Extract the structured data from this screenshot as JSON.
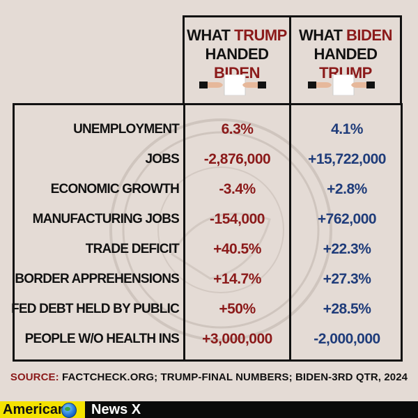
{
  "header": {
    "left": {
      "what": "WHAT",
      "name": "TRUMP",
      "handed": "HANDED",
      "to": "BIDEN"
    },
    "right": {
      "what": "WHAT",
      "name": "BIDEN",
      "handed": "HANDED",
      "to": "TRUMP"
    }
  },
  "rows": [
    {
      "label": "UNEMPLOYMENT",
      "trump": "6.3%",
      "biden": "4.1%"
    },
    {
      "label": "JOBS",
      "trump": "-2,876,000",
      "biden": "+15,722,000"
    },
    {
      "label": "ECONOMIC GROWTH",
      "trump": "-3.4%",
      "biden": "+2.8%"
    },
    {
      "label": "MANUFACTURING JOBS",
      "trump": "-154,000",
      "biden": "+762,000"
    },
    {
      "label": "TRADE DEFICIT",
      "trump": "+40.5%",
      "biden": "+22.3%"
    },
    {
      "label": "BORDER APPREHENSIONS",
      "trump": "+14.7%",
      "biden": "+27.3%"
    },
    {
      "label": "FED DEBT HELD BY PUBLIC",
      "trump": "+50%",
      "biden": "+28.5%"
    },
    {
      "label": "PEOPLE W/O HEALTH INS",
      "trump": "+3,000,000",
      "biden": "-2,000,000"
    }
  ],
  "source": {
    "prefix": "SOURCE:",
    "text": "FACTCHECK.ORG; TRUMP-FINAL NUMBERS; BIDEN-3RD QTR, 2024"
  },
  "footer": {
    "brand": "American",
    "channel": "News X"
  },
  "colors": {
    "trump_red": "#8b1a1a",
    "biden_blue": "#1f3c7a",
    "background": "#e4dbd5",
    "brand_yellow": "#f4e200"
  },
  "icons": {
    "handoff": "hand-passing-paper-icon",
    "brand": "globe-icon"
  }
}
